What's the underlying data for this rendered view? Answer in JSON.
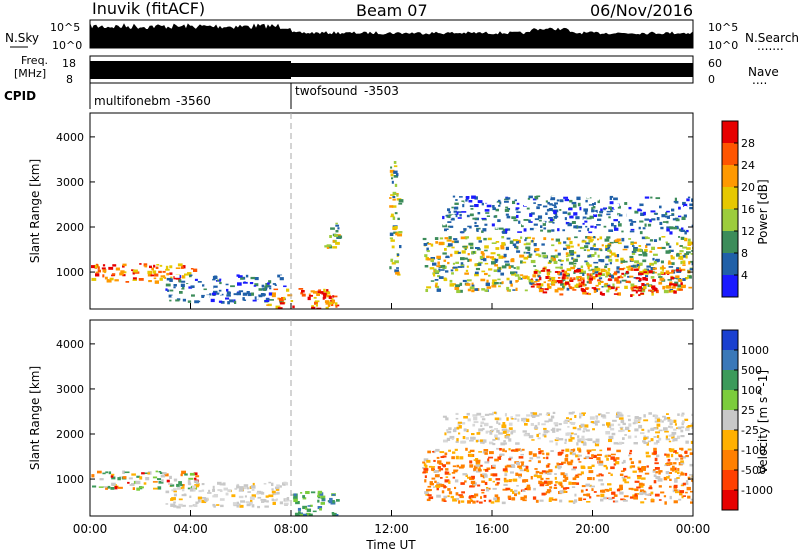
{
  "header": {
    "station": "Inuvik (fitACF)",
    "beam": "Beam 07",
    "date": "06/Nov/2016"
  },
  "noise_panel": {
    "left_label": "N.Sky",
    "right_label": "N.Search",
    "left_ticks": [
      "10^5",
      "10^0"
    ],
    "right_ticks": [
      "10^5",
      "10^0"
    ],
    "right_dots": "......."
  },
  "freq_panel": {
    "left_label_1": "Freq.",
    "left_label_2": "[MHz]",
    "right_label": "Nave",
    "left_ticks": [
      "18",
      "8"
    ],
    "right_ticks": [
      "60",
      "0"
    ],
    "right_dots": "...."
  },
  "cpid_panel": {
    "label": "CPID",
    "modes": [
      {
        "name": "multifonebm",
        "id": "-3560",
        "start_hour": 0
      },
      {
        "name": "twofsound",
        "id": "-3503",
        "start_hour": 8
      }
    ]
  },
  "chart_data": [
    {
      "type": "heatmap",
      "quantity": "Power",
      "ylabel": "Slant Range [km]",
      "xlabel": "Time UT",
      "x_ticks": [
        "00:00",
        "04:00",
        "08:00",
        "12:00",
        "16:00",
        "20:00",
        "00:00"
      ],
      "x_range_hours": [
        0,
        24
      ],
      "y_ticks": [
        1000,
        2000,
        3000,
        4000
      ],
      "y_range_km": [
        180,
        4530
      ],
      "colorbar_title": "Power [dB]",
      "colorbar_ticks": [
        "28",
        "24",
        "20",
        "16",
        "12",
        "8",
        "4"
      ],
      "colorbar_colors": [
        "#e60000",
        "#ff5500",
        "#ff9900",
        "#e6c800",
        "#9ccc3c",
        "#3c8c5a",
        "#2060a8",
        "#1a1aff"
      ],
      "echo_regions": [
        {
          "t0": 0.0,
          "t1": 4.2,
          "r0": 800,
          "r1": 1200,
          "level": "high"
        },
        {
          "t0": 3.0,
          "t1": 7.8,
          "r0": 350,
          "r1": 950,
          "level": "low"
        },
        {
          "t0": 7.0,
          "t1": 9.8,
          "r0": 200,
          "r1": 650,
          "level": "high"
        },
        {
          "t0": 9.3,
          "t1": 9.9,
          "r0": 1500,
          "r1": 2100,
          "level": "mid"
        },
        {
          "t0": 11.9,
          "t1": 12.3,
          "r0": 900,
          "r1": 3600,
          "level": "mid"
        },
        {
          "t0": 13.2,
          "t1": 24.0,
          "r0": 600,
          "r1": 1800,
          "level": "mid"
        },
        {
          "t0": 17.5,
          "t1": 23.5,
          "r0": 500,
          "r1": 1100,
          "level": "high"
        },
        {
          "t0": 14.0,
          "t1": 24.0,
          "r0": 1900,
          "r1": 2700,
          "level": "low"
        }
      ]
    },
    {
      "type": "heatmap",
      "quantity": "Velocity",
      "ylabel": "Slant Range [km]",
      "xlabel": "Time UT",
      "x_ticks": [
        "00:00",
        "04:00",
        "08:00",
        "12:00",
        "16:00",
        "20:00",
        "00:00"
      ],
      "x_range_hours": [
        0,
        24
      ],
      "y_ticks": [
        1000,
        2000,
        3000,
        4000
      ],
      "y_range_km": [
        180,
        4530
      ],
      "colorbar_title": "Velocity [m s^-1]",
      "colorbar_ticks": [
        "1000",
        "500",
        "100",
        "25",
        "-25",
        "-100",
        "-500",
        "-1000"
      ],
      "colorbar_colors": [
        "#1a40d0",
        "#3a78b8",
        "#3c9a5a",
        "#7ccc3c",
        "#c8c8c8",
        "#ffb000",
        "#ff8000",
        "#ff4000",
        "#e60000"
      ],
      "echo_regions": [
        {
          "t0": 0.0,
          "t1": 4.2,
          "r0": 800,
          "r1": 1200,
          "level": "mixed"
        },
        {
          "t0": 3.0,
          "t1": 8.0,
          "r0": 400,
          "r1": 950,
          "level": "gray"
        },
        {
          "t0": 8.0,
          "t1": 9.8,
          "r0": 200,
          "r1": 750,
          "level": "green"
        },
        {
          "t0": 13.2,
          "t1": 24.0,
          "r0": 500,
          "r1": 1700,
          "level": "orange"
        },
        {
          "t0": 14.0,
          "t1": 24.0,
          "r0": 1800,
          "r1": 2500,
          "level": "gray"
        }
      ]
    }
  ]
}
